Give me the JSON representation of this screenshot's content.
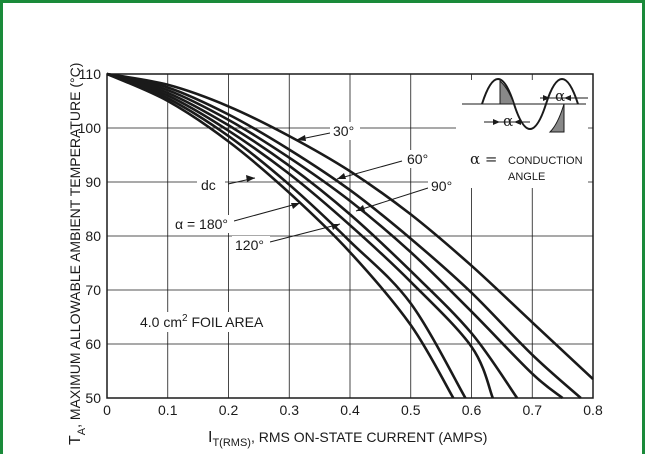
{
  "chart_data": {
    "type": "line",
    "xlabel_main": "I",
    "xlabel_sub": "T(RMS)",
    "xlabel_rest": ", RMS ON-STATE CURRENT (AMPS)",
    "ylabel_main": "T",
    "ylabel_sub": "A",
    "ylabel_rest": ", MAXIMUM ALLOWABLE AMBIENT TEMPERATURE (°C)",
    "xlim": [
      0,
      0.8
    ],
    "ylim": [
      50,
      110
    ],
    "xticks": [
      "0",
      "0.1",
      "0.2",
      "0.3",
      "0.4",
      "0.5",
      "0.6",
      "0.7",
      "0.8"
    ],
    "yticks": [
      "50",
      "60",
      "70",
      "80",
      "90",
      "100",
      "110"
    ],
    "series": [
      {
        "name": "30°",
        "x": [
          0,
          0.1,
          0.2,
          0.3,
          0.4,
          0.5,
          0.6,
          0.7,
          0.8
        ],
        "y": [
          110,
          108,
          104,
          98.5,
          92,
          84,
          74.5,
          64,
          53.5
        ]
      },
      {
        "name": "60°",
        "x": [
          0,
          0.1,
          0.2,
          0.3,
          0.4,
          0.5,
          0.6,
          0.7,
          0.78
        ],
        "y": [
          110,
          107.5,
          102.5,
          96,
          88.5,
          79.5,
          69.5,
          58,
          50
        ]
      },
      {
        "name": "90°",
        "x": [
          0,
          0.1,
          0.2,
          0.3,
          0.4,
          0.5,
          0.6,
          0.7,
          0.75
        ],
        "y": [
          110,
          107,
          101.5,
          94.5,
          86.5,
          77,
          66,
          54.5,
          50
        ]
      },
      {
        "name": "120°",
        "x": [
          0,
          0.1,
          0.2,
          0.3,
          0.4,
          0.5,
          0.6,
          0.675
        ],
        "y": [
          110,
          106.5,
          100.5,
          93,
          84,
          73.5,
          62,
          50
        ]
      },
      {
        "name": "α = 180°",
        "x": [
          0,
          0.1,
          0.2,
          0.3,
          0.4,
          0.5,
          0.6,
          0.635
        ],
        "y": [
          110,
          106,
          99.5,
          91.5,
          82,
          71.5,
          59.5,
          50
        ]
      },
      {
        "name": "dc",
        "x": [
          0,
          0.1,
          0.2,
          0.3,
          0.4,
          0.5,
          0.59
        ],
        "y": [
          110,
          105.5,
          98.5,
          89.5,
          79,
          67.5,
          50
        ]
      },
      {
        "name": "",
        "x": [
          0,
          0.1,
          0.2,
          0.3,
          0.4,
          0.5,
          0.57
        ],
        "y": [
          110,
          105,
          97.5,
          88,
          77,
          63.5,
          50
        ]
      }
    ],
    "annotations": {
      "a30": "30°",
      "a60": "60°",
      "a90": "90°",
      "a120": "120°",
      "a180": "α = 180°",
      "adc": "dc",
      "foil_main": "4.0 cm",
      "foil_sup": "2",
      "foil_rest": " FOIL AREA",
      "alpha": "α",
      "alpha_eq": "α =",
      "conduction": "CONDUCTION",
      "angle": "ANGLE"
    },
    "grid": true,
    "frame_color": "#1a8a3a"
  }
}
